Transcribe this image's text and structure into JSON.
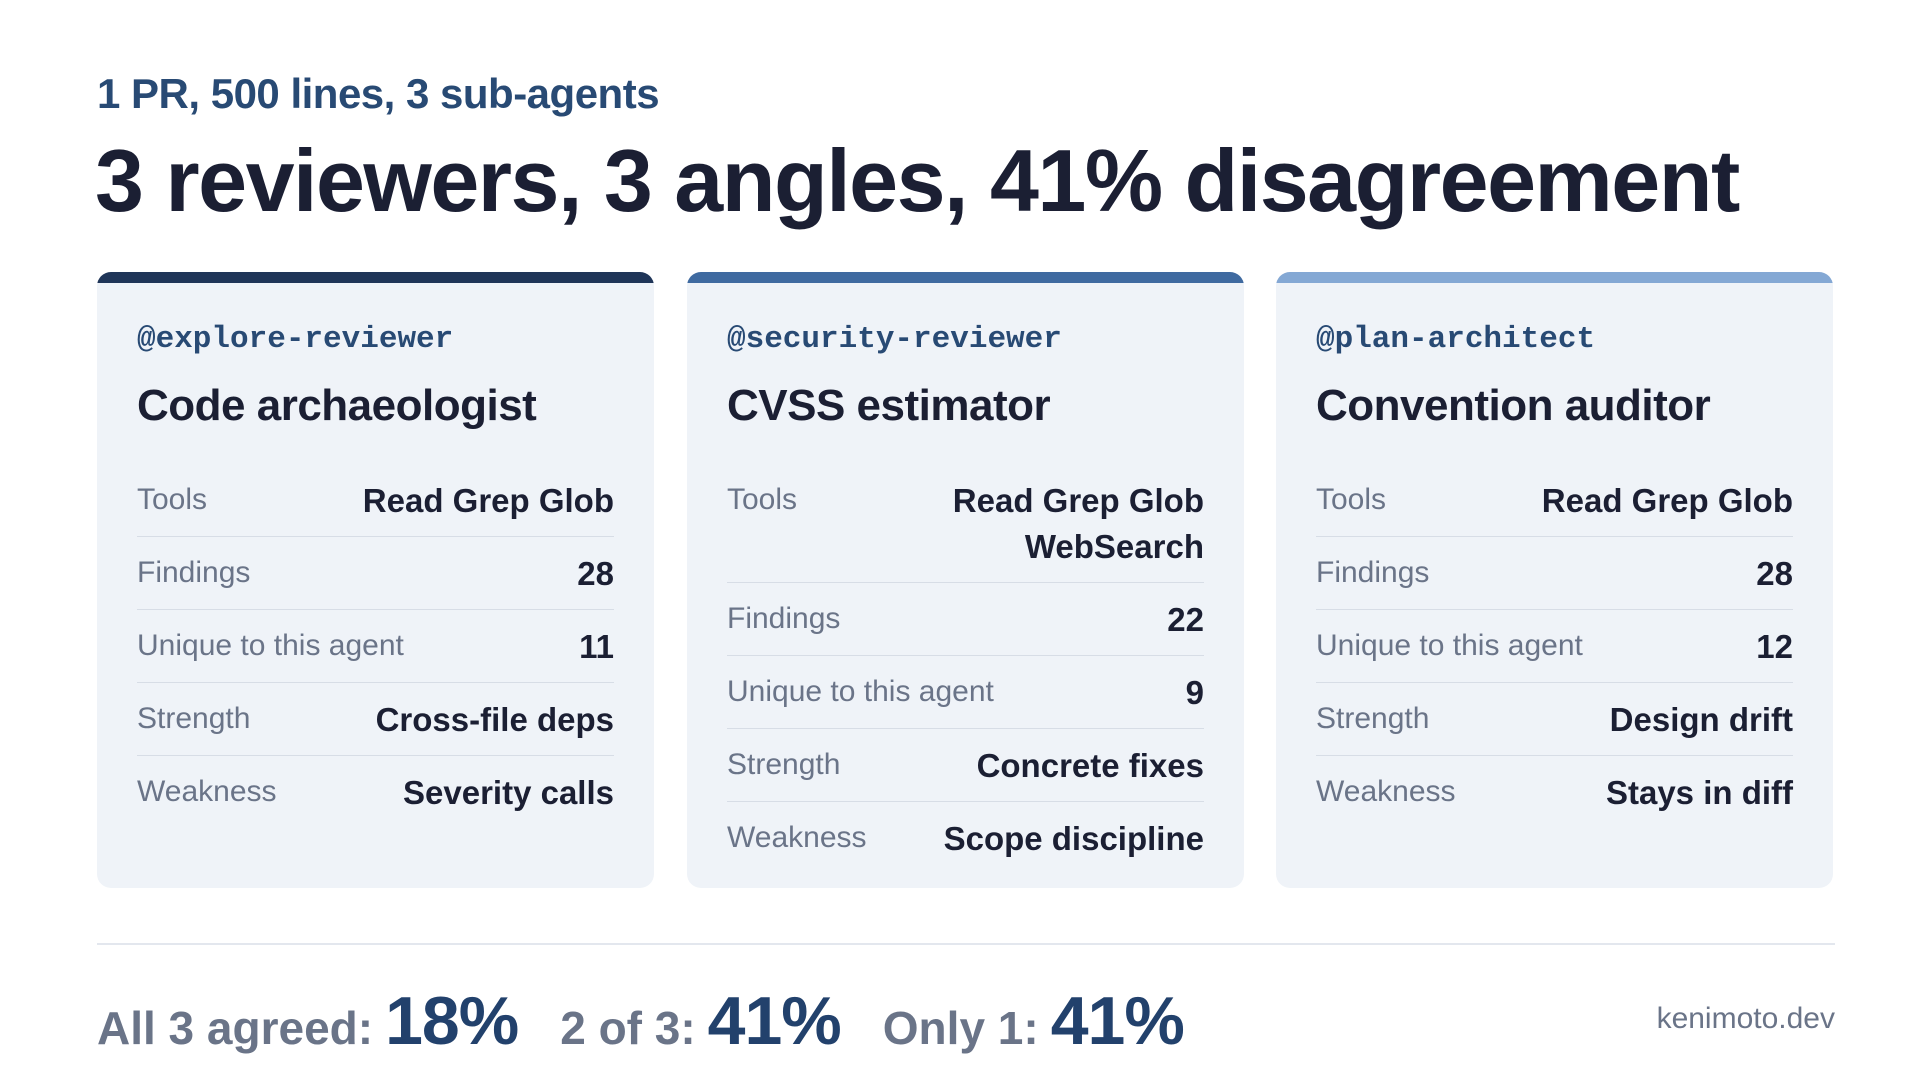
{
  "header": {
    "subtitle": "1 PR, 500 lines, 3 sub-agents",
    "title": "3 reviewers, 3 angles, 41% disagreement"
  },
  "cards": [
    {
      "handle": "@explore-reviewer",
      "role": "Code archaeologist",
      "accent": "#1f3558",
      "rows": [
        {
          "label": "Tools",
          "value": "Read Grep Glob"
        },
        {
          "label": "Findings",
          "value": "28"
        },
        {
          "label": "Unique to this agent",
          "value": "11"
        },
        {
          "label": "Strength",
          "value": "Cross-file deps"
        },
        {
          "label": "Weakness",
          "value": "Severity calls"
        }
      ]
    },
    {
      "handle": "@security-reviewer",
      "role": "CVSS estimator",
      "accent": "#3f6aa0",
      "rows": [
        {
          "label": "Tools",
          "value": "Read Grep Glob WebSearch"
        },
        {
          "label": "Findings",
          "value": "22"
        },
        {
          "label": "Unique to this agent",
          "value": "9"
        },
        {
          "label": "Strength",
          "value": "Concrete fixes"
        },
        {
          "label": "Weakness",
          "value": "Scope discipline"
        }
      ]
    },
    {
      "handle": "@plan-architect",
      "role": "Convention auditor",
      "accent": "#84a8d4",
      "rows": [
        {
          "label": "Tools",
          "value": "Read Grep Glob"
        },
        {
          "label": "Findings",
          "value": "28"
        },
        {
          "label": "Unique to this agent",
          "value": "12"
        },
        {
          "label": "Strength",
          "value": "Design drift"
        },
        {
          "label": "Weakness",
          "value": "Stays in diff"
        }
      ]
    }
  ],
  "footer": {
    "stats": [
      {
        "label": "All 3 agreed:",
        "value": "18%"
      },
      {
        "label": "2 of 3:",
        "value": "41%"
      },
      {
        "label": "Only 1:",
        "value": "41%"
      }
    ],
    "brand": "kenimoto.dev"
  }
}
